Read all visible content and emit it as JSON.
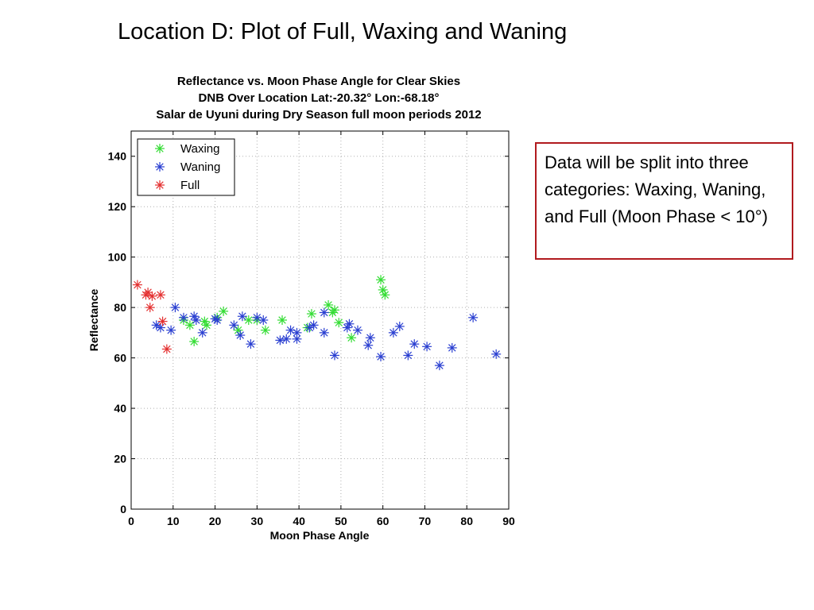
{
  "slide": {
    "title": "Location D:  Plot of Full, Waxing and Waning",
    "note": "Data will be split into three categories: Waxing, Waning, and Full (Moon Phase < 10°)"
  },
  "chart_data": {
    "type": "scatter",
    "title": [
      "Reflectance vs. Moon Phase Angle for Clear Skies",
      "DNB Over Location Lat:-20.32° Lon:-68.18°",
      "Salar de Uyuni during Dry Season full moon periods 2012"
    ],
    "xlabel": "Moon Phase Angle",
    "ylabel": "Reflectance",
    "xlim": [
      0,
      90
    ],
    "ylim": [
      0,
      150
    ],
    "xticks": [
      0,
      10,
      20,
      30,
      40,
      50,
      60,
      70,
      80,
      90
    ],
    "yticks": [
      0,
      20,
      40,
      60,
      80,
      100,
      120,
      140
    ],
    "grid": true,
    "legend_position": "top-left",
    "marker": "asterisk",
    "series": [
      {
        "name": "Waxing",
        "color": "#33dd33",
        "points": [
          [
            12.5,
            75
          ],
          [
            14,
            73
          ],
          [
            15,
            66.5
          ],
          [
            17.5,
            74.5
          ],
          [
            18,
            73
          ],
          [
            20.5,
            76
          ],
          [
            22,
            78.5
          ],
          [
            25.5,
            71
          ],
          [
            28,
            75
          ],
          [
            30,
            75
          ],
          [
            32,
            71
          ],
          [
            36,
            75
          ],
          [
            42,
            72
          ],
          [
            43,
            77.5
          ],
          [
            47,
            81
          ],
          [
            48,
            78
          ],
          [
            48.5,
            79
          ],
          [
            49.5,
            74
          ],
          [
            52.5,
            68
          ],
          [
            59.5,
            91
          ],
          [
            60,
            87
          ],
          [
            60.5,
            85
          ]
        ]
      },
      {
        "name": "Waning",
        "color": "#2a3fd1",
        "points": [
          [
            6,
            73
          ],
          [
            7,
            72
          ],
          [
            9.5,
            71
          ],
          [
            10.5,
            80
          ],
          [
            12.5,
            76
          ],
          [
            15,
            76.5
          ],
          [
            15.5,
            75
          ],
          [
            17,
            70
          ],
          [
            20,
            75.5
          ],
          [
            20.5,
            75
          ],
          [
            24.5,
            73
          ],
          [
            26,
            69
          ],
          [
            26.5,
            76.5
          ],
          [
            28.5,
            65.5
          ],
          [
            30,
            76
          ],
          [
            31.5,
            75
          ],
          [
            35.5,
            67
          ],
          [
            37,
            67.5
          ],
          [
            38,
            71
          ],
          [
            39.5,
            70
          ],
          [
            39.5,
            67.5
          ],
          [
            42.5,
            72
          ],
          [
            43.5,
            73
          ],
          [
            46,
            78
          ],
          [
            46,
            70
          ],
          [
            48.5,
            61
          ],
          [
            51.5,
            72
          ],
          [
            52,
            73.5
          ],
          [
            54,
            71
          ],
          [
            56.5,
            65
          ],
          [
            57,
            68
          ],
          [
            59.5,
            60.5
          ],
          [
            62.5,
            70
          ],
          [
            64,
            72.5
          ],
          [
            66,
            61
          ],
          [
            67.5,
            65.5
          ],
          [
            70.5,
            64.5
          ],
          [
            73.5,
            57
          ],
          [
            76.5,
            64
          ],
          [
            81.5,
            76
          ],
          [
            87,
            61.5
          ]
        ]
      },
      {
        "name": "Full",
        "color": "#e43030",
        "points": [
          [
            1.5,
            89
          ],
          [
            3.5,
            85
          ],
          [
            4,
            86
          ],
          [
            4.5,
            80
          ],
          [
            5,
            84.5
          ],
          [
            7,
            85
          ],
          [
            7.5,
            74.5
          ],
          [
            8.5,
            63.5
          ]
        ]
      }
    ]
  }
}
